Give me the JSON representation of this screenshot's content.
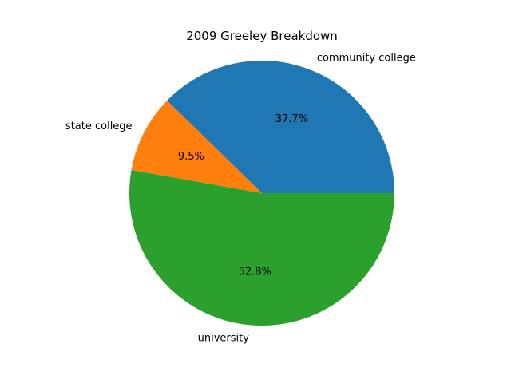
{
  "chart_data": {
    "type": "pie",
    "title": "2009 Greeley Breakdown",
    "categories": [
      "community college",
      "state college",
      "university"
    ],
    "values": [
      37.7,
      9.5,
      52.8
    ],
    "percent_labels": [
      "37.7%",
      "9.5%",
      "52.8%"
    ],
    "colors": [
      "#1f77b4",
      "#ff7f0e",
      "#2ca02c"
    ],
    "start_angle_deg": 0,
    "direction": "counterclockwise",
    "legend": "none"
  }
}
